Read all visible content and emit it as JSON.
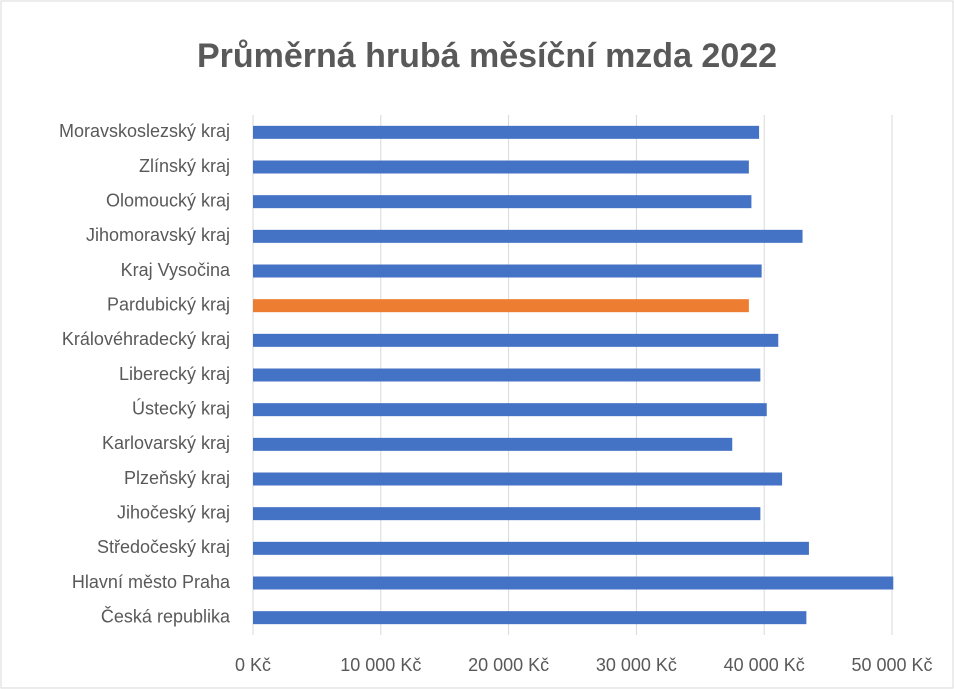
{
  "chart_data": {
    "type": "barh",
    "title": "Průměrná hrubá měsíční mzda 2022",
    "categories": [
      "Moravskoslezský kraj",
      "Zlínský kraj",
      "Olomoucký kraj",
      "Jihomoravský kraj",
      "Kraj Vysočina",
      "Pardubický kraj",
      "Královéhradecký kraj",
      "Liberecký kraj",
      "Ústecký kraj",
      "Karlovarský kraj",
      "Plzeňský kraj",
      "Jihočeský kraj",
      "Středočeský kraj",
      "Hlavní město Praha",
      "Česká republika"
    ],
    "values": [
      39600,
      38800,
      39000,
      43000,
      39800,
      38800,
      41100,
      39700,
      40200,
      37500,
      41400,
      39700,
      43500,
      50100,
      43300
    ],
    "colors": [
      "#4472c4",
      "#4472c4",
      "#4472c4",
      "#4472c4",
      "#4472c4",
      "#ed7d31",
      "#4472c4",
      "#4472c4",
      "#4472c4",
      "#4472c4",
      "#4472c4",
      "#4472c4",
      "#4472c4",
      "#4472c4",
      "#4472c4"
    ],
    "xlim": [
      0,
      50000
    ],
    "xticks": [
      {
        "value": 0,
        "label": "0 Kč"
      },
      {
        "value": 10000,
        "label": "10 000 Kč"
      },
      {
        "value": 20000,
        "label": "20 000 Kč"
      },
      {
        "value": 30000,
        "label": "30 000 Kč"
      },
      {
        "value": 40000,
        "label": "40 000 Kč"
      },
      {
        "value": 50000,
        "label": "50 000 Kč"
      }
    ],
    "grid": true
  }
}
